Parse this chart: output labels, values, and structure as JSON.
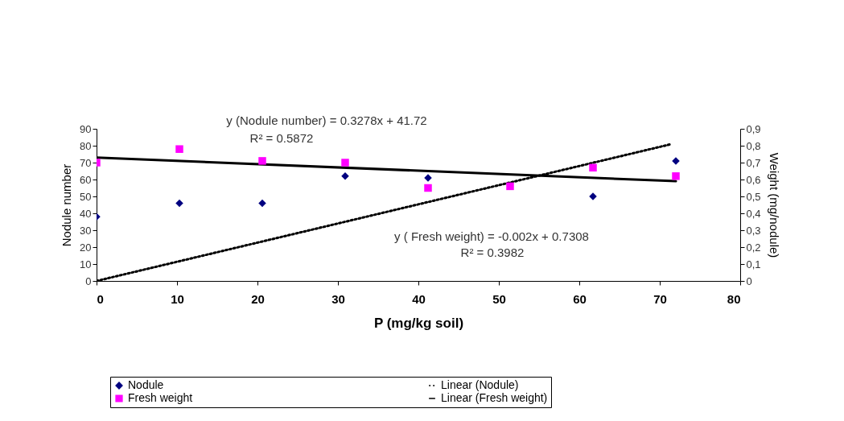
{
  "chart_data": {
    "type": "scatter",
    "xlabel": "P  (mg/kg soil)",
    "ylabel": "Nodule number",
    "y2label": "Weight (mg/nodule)",
    "xlim": [
      0,
      80
    ],
    "xticks": [
      0,
      10,
      20,
      30,
      40,
      50,
      60,
      70,
      80
    ],
    "ylim": [
      0,
      90
    ],
    "yticks": [
      0,
      10,
      20,
      30,
      40,
      50,
      60,
      70,
      80,
      90
    ],
    "y2lim": [
      0,
      0.9
    ],
    "y2ticks": [
      {
        "value": 0,
        "label": "0"
      },
      {
        "value": 0.1,
        "label": "0,1"
      },
      {
        "value": 0.2,
        "label": "0,2"
      },
      {
        "value": 0.3,
        "label": "0,3"
      },
      {
        "value": 0.4,
        "label": "0,4"
      },
      {
        "value": 0.5,
        "label": "0,5"
      },
      {
        "value": 0.6,
        "label": "0,6"
      },
      {
        "value": 0.7,
        "label": "0,7"
      },
      {
        "value": 0.8,
        "label": "0,8"
      },
      {
        "value": 0.9,
        "label": "0,9"
      }
    ],
    "grid": false,
    "legend": "bottom",
    "series": [
      {
        "name": "Nodule",
        "marker": "diamond",
        "color": "#000080",
        "x": [
          0,
          10.3,
          20.6,
          30.9,
          41.2,
          61.7,
          72
        ],
        "values": [
          38,
          46,
          46,
          62,
          61,
          50,
          71
        ]
      },
      {
        "name": "Fresh weight",
        "marker": "square",
        "color": "#ff00ff",
        "axis": "y2",
        "x": [
          0,
          10.3,
          20.6,
          30.9,
          41.2,
          51.4,
          61.7,
          72
        ],
        "values": [
          0.7,
          0.78,
          0.71,
          0.7,
          0.55,
          0.56,
          0.67,
          0.62
        ]
      },
      {
        "name": "Linear (Nodule)",
        "type": "line",
        "line_style": "dotted",
        "color": "#000000",
        "x": [
          0,
          71.5
        ],
        "values": [
          0,
          81
        ]
      },
      {
        "name": "Linear (Fresh weight)",
        "type": "line",
        "line_style": "solid",
        "color": "#000000",
        "axis": "y2",
        "x": [
          0,
          72
        ],
        "values": [
          0.73,
          0.59
        ]
      }
    ],
    "annotations": [
      "y  (Nodule number) = 0.3278x + 41.72",
      "R² = 0.5872",
      "y  ( Fresh weight) = -0.002x + 0.7308",
      "R² = 0.3982"
    ]
  }
}
